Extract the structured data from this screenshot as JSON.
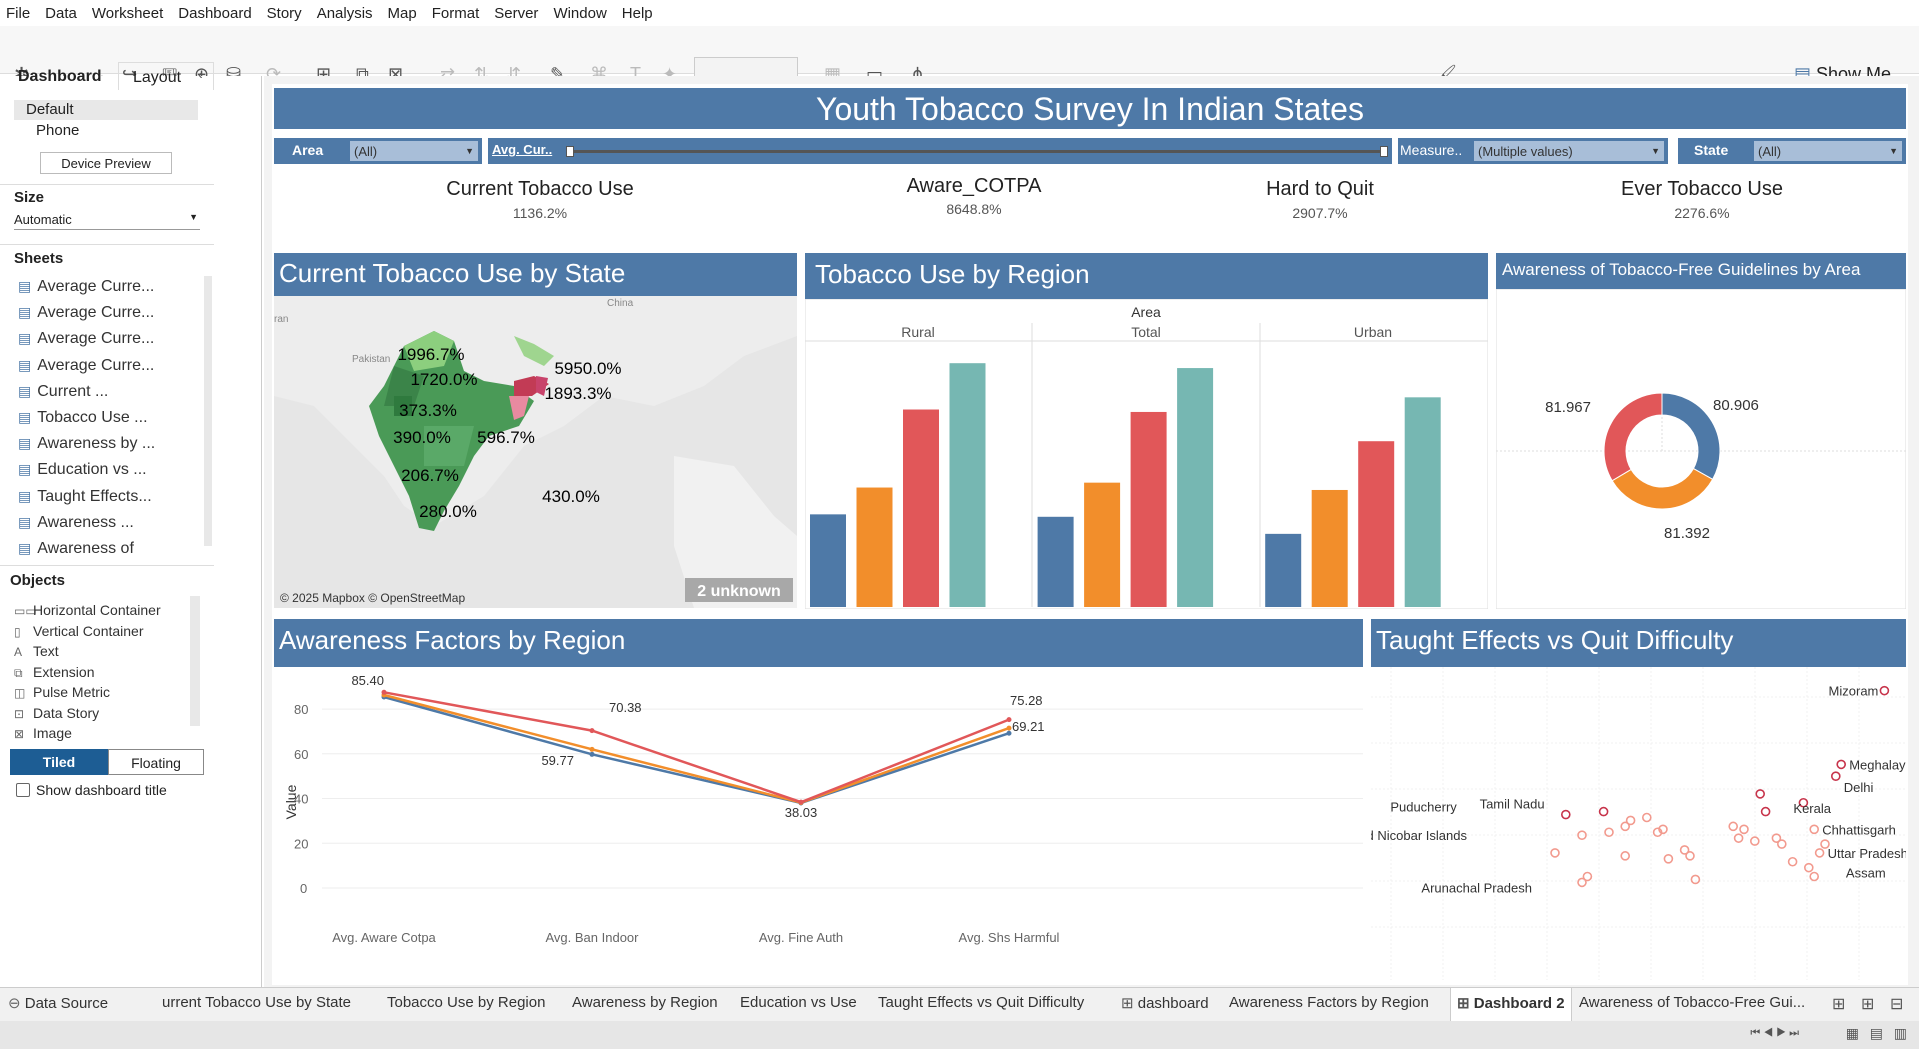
{
  "menu": [
    "File",
    "Data",
    "Worksheet",
    "Dashboard",
    "Story",
    "Analysis",
    "Map",
    "Format",
    "Server",
    "Window",
    "Help"
  ],
  "toolbar": {
    "show_me": "Show Me"
  },
  "sidebar": {
    "tab_dashboard": "Dashboard",
    "tab_layout": "Layout",
    "device_default": "Default",
    "device_phone": "Phone",
    "device_preview": "Device Preview",
    "size_title": "Size",
    "size_value": "Automatic",
    "sheets_title": "Sheets",
    "sheets": [
      "Average Curre...",
      "Average Curre...",
      "Average Curre...",
      "Average Curre...",
      "Current ...",
      "Tobacco Use ...",
      "Awareness by ...",
      "Education vs ...",
      "Taught Effects...",
      "Awareness ...",
      "Awareness of"
    ],
    "objects_title": "Objects",
    "objects": [
      "Horizontal Container",
      "Vertical Container",
      "Text",
      "Extension",
      "Pulse Metric",
      "Data Story",
      "Image"
    ],
    "tiled": "Tiled",
    "floating": "Floating",
    "show_title": "Show dashboard title"
  },
  "dashboard": {
    "title": "Youth Tobacco Survey In Indian States",
    "filters": {
      "area_label": "Area",
      "area_value": "(All)",
      "avg_label": "Avg. Cur..",
      "measure_label": "Measure..",
      "measure_value": "(Multiple values)",
      "state_label": "State",
      "state_value": "(All)"
    },
    "kpis": [
      {
        "title": "Current Tobacco Use",
        "value": "1136.2%"
      },
      {
        "title": "Aware_COTPA",
        "value": "8648.8%"
      },
      {
        "title": "Hard to Quit",
        "value": "2907.7%"
      },
      {
        "title": "Ever Tobacco Use",
        "value": "2276.6%"
      }
    ],
    "map": {
      "title": "Current Tobacco Use by State",
      "attribution": "© 2025 Mapbox © OpenStreetMap",
      "unknown": "2 unknown",
      "place_china": "China",
      "place_pakistan": "Pakistan",
      "place_iran": "ran",
      "labels": [
        "1996.7%",
        "1720.0%",
        "373.3%",
        "390.0%",
        "596.7%",
        "206.7%",
        "280.0%",
        "5950.0%",
        "1893.3%",
        "430.0%"
      ]
    },
    "region": {
      "title": "Tobacco Use by Region",
      "area_header": "Area",
      "panels": [
        "Rural",
        "Total",
        "Urban"
      ]
    },
    "awareness": {
      "title": "Awareness of Tobacco-Free Guidelines by Area",
      "labels": [
        "80.906",
        "81.392",
        "81.967"
      ]
    },
    "factors": {
      "title": "Awareness Factors by Region",
      "ylabel": "Value",
      "yticks": [
        "80",
        "60",
        "40",
        "20",
        "0"
      ],
      "xticks": [
        "Avg. Aware Cotpa",
        "Avg. Ban Indoor",
        "Avg. Fine Auth",
        "Avg. Shs Harmful"
      ],
      "labels": [
        "85.40",
        "70.38",
        "59.77",
        "38.03",
        "75.28",
        "69.21"
      ]
    },
    "scatter": {
      "title": "Taught Effects vs Quit Difficulty",
      "labels": [
        "Mizoram",
        "Meghalaya",
        "Delhi",
        "Kerala",
        "Tamil Nadu",
        "Puducherry",
        "Chhattisgarh",
        "Andaman and Nicobar Islands",
        "Uttar Pradesh",
        "Assam",
        "Arunachal Pradesh"
      ]
    }
  },
  "tabs": [
    "Data Source",
    "urrent Tobacco Use by State",
    "Tobacco Use by Region",
    "Awareness by Region",
    "Education vs Use",
    "Taught Effects vs Quit Difficulty",
    "dashboard",
    "Awareness Factors by Region",
    "Dashboard 2",
    "Awareness of Tobacco-Free Gui..."
  ],
  "colors": {
    "blue": "#4e79a7",
    "orange": "#f28e2b",
    "red": "#e15759",
    "teal": "#76b7b2"
  },
  "chart_data": [
    {
      "type": "bar",
      "title": "Tobacco Use by Region",
      "panels": [
        "Rural",
        "Total",
        "Urban"
      ],
      "series": [
        {
          "values": [
            38,
            37,
            30
          ]
        },
        {
          "values": [
            49,
            51,
            48
          ]
        },
        {
          "values": [
            81,
            80,
            68
          ]
        },
        {
          "values": [
            100,
            98,
            86
          ]
        }
      ],
      "ylim": [
        0,
        105
      ]
    },
    {
      "type": "pie",
      "title": "Awareness of Tobacco-Free Guidelines by Area",
      "values": [
        80.906,
        81.392,
        81.967
      ],
      "colors": [
        "#4e79a7",
        "#f28e2b",
        "#e15759"
      ]
    },
    {
      "type": "line",
      "title": "Awareness Factors by Region",
      "categories": [
        "Avg. Aware Cotpa",
        "Avg. Ban Indoor",
        "Avg. Fine Auth",
        "Avg. Shs Harmful"
      ],
      "series": [
        {
          "values": [
            85.4,
            59.77,
            38.03,
            69.21
          ]
        },
        {
          "values": [
            86.3,
            62.0,
            38.2,
            71.5
          ]
        },
        {
          "values": [
            87.5,
            70.38,
            38.4,
            75.28
          ]
        }
      ],
      "ylim": [
        0,
        90
      ],
      "ylabel": "Value"
    },
    {
      "type": "scatter",
      "title": "Taught Effects vs Quit Difficulty",
      "points": [
        {
          "label": "Mizoram",
          "x": 96,
          "y": 93
        },
        {
          "label": "Meghalaya",
          "x": 88,
          "y": 68
        },
        {
          "label": "Delhi",
          "x": 87,
          "y": 64
        },
        {
          "label": "Kerala",
          "x": 73,
          "y": 58
        },
        {
          "label": "Tamil Nadu",
          "x": 44,
          "y": 52
        },
        {
          "label": "Puducherry",
          "x": 37,
          "y": 51
        },
        {
          "label": "Chhattisgarh",
          "x": 83,
          "y": 46
        },
        {
          "label": "Andaman and Nicobar Islands",
          "x": 40,
          "y": 44
        },
        {
          "label": "Uttar Pradesh",
          "x": 84,
          "y": 38
        },
        {
          "label": "Assam",
          "x": 82,
          "y": 33
        },
        {
          "label": "Arunachal Pradesh",
          "x": 40,
          "y": 28
        },
        {
          "label": "",
          "x": 45,
          "y": 45
        },
        {
          "label": "",
          "x": 48,
          "y": 47
        },
        {
          "label": "",
          "x": 49,
          "y": 49
        },
        {
          "label": "",
          "x": 52,
          "y": 50
        },
        {
          "label": "",
          "x": 55,
          "y": 46
        },
        {
          "label": "",
          "x": 56,
          "y": 36
        },
        {
          "label": "",
          "x": 59,
          "y": 39
        },
        {
          "label": "",
          "x": 60,
          "y": 37
        },
        {
          "label": "",
          "x": 61,
          "y": 29
        },
        {
          "label": "",
          "x": 68,
          "y": 47
        },
        {
          "label": "",
          "x": 69,
          "y": 43
        },
        {
          "label": "",
          "x": 70,
          "y": 46
        },
        {
          "label": "",
          "x": 72,
          "y": 42
        },
        {
          "label": "",
          "x": 74,
          "y": 52
        },
        {
          "label": "",
          "x": 76,
          "y": 43
        },
        {
          "label": "",
          "x": 77,
          "y": 41
        },
        {
          "label": "",
          "x": 79,
          "y": 35
        },
        {
          "label": "",
          "x": 81,
          "y": 55
        },
        {
          "label": "",
          "x": 48,
          "y": 37
        },
        {
          "label": "",
          "x": 35,
          "y": 38
        },
        {
          "label": "",
          "x": 41,
          "y": 30
        },
        {
          "label": "",
          "x": 83,
          "y": 30
        },
        {
          "label": "",
          "x": 85,
          "y": 41
        },
        {
          "label": "",
          "x": 54,
          "y": 45
        }
      ]
    }
  ]
}
